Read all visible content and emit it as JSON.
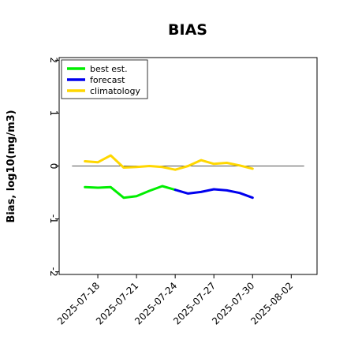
{
  "chart_data": {
    "type": "line",
    "title": "BIAS",
    "xlabel": "",
    "ylabel": "Bias, log10(mg/m3)",
    "ylim": [
      -2.05,
      2.05
    ],
    "xlim": [
      "2025-07-15",
      "2025-08-04"
    ],
    "yticks": [
      {
        "value": -2,
        "label": "-2"
      },
      {
        "value": -1,
        "label": "-1"
      },
      {
        "value": 0,
        "label": "0"
      },
      {
        "value": 1,
        "label": "1"
      },
      {
        "value": 2,
        "label": "2"
      }
    ],
    "xticks": [
      {
        "value": "2025-07-18",
        "label": "2025-07-18",
        "color": "#000000"
      },
      {
        "value": "2025-07-21",
        "label": "2025-07-21",
        "color": "#000000"
      },
      {
        "value": "2025-07-24",
        "label": "2025-07-24",
        "color": "#228B22"
      },
      {
        "value": "2025-07-27",
        "label": "2025-07-27",
        "color": "#000000"
      },
      {
        "value": "2025-07-30",
        "label": "2025-07-30",
        "color": "#000000"
      },
      {
        "value": "2025-08-02",
        "label": "2025-08-02",
        "color": "#000000"
      }
    ],
    "reference_line": {
      "y": 0,
      "x_from": "2025-07-16",
      "x_to": "2025-08-03",
      "color": "#555555"
    },
    "legend": "top-left",
    "grid": false,
    "series": [
      {
        "name": "best est.",
        "color": "#00ee00",
        "x": [
          "2025-07-17",
          "2025-07-18",
          "2025-07-19",
          "2025-07-20",
          "2025-07-21",
          "2025-07-22",
          "2025-07-23",
          "2025-07-24"
        ],
        "y": [
          -0.4,
          -0.41,
          -0.4,
          -0.6,
          -0.57,
          -0.47,
          -0.38,
          -0.45
        ]
      },
      {
        "name": "forecast",
        "color": "#0000ee",
        "x": [
          "2025-07-24",
          "2025-07-25",
          "2025-07-26",
          "2025-07-27",
          "2025-07-28",
          "2025-07-29",
          "2025-07-30"
        ],
        "y": [
          -0.45,
          -0.52,
          -0.49,
          -0.44,
          -0.46,
          -0.51,
          -0.6
        ]
      },
      {
        "name": "climatology",
        "color": "#ffd700",
        "x": [
          "2025-07-17",
          "2025-07-18",
          "2025-07-19",
          "2025-07-20",
          "2025-07-21",
          "2025-07-22",
          "2025-07-23",
          "2025-07-24",
          "2025-07-25",
          "2025-07-26",
          "2025-07-27",
          "2025-07-28",
          "2025-07-29",
          "2025-07-30"
        ],
        "y": [
          0.09,
          0.07,
          0.2,
          -0.03,
          -0.02,
          0.0,
          -0.02,
          -0.07,
          0.0,
          0.11,
          0.04,
          0.06,
          0.01,
          -0.05
        ]
      }
    ]
  }
}
